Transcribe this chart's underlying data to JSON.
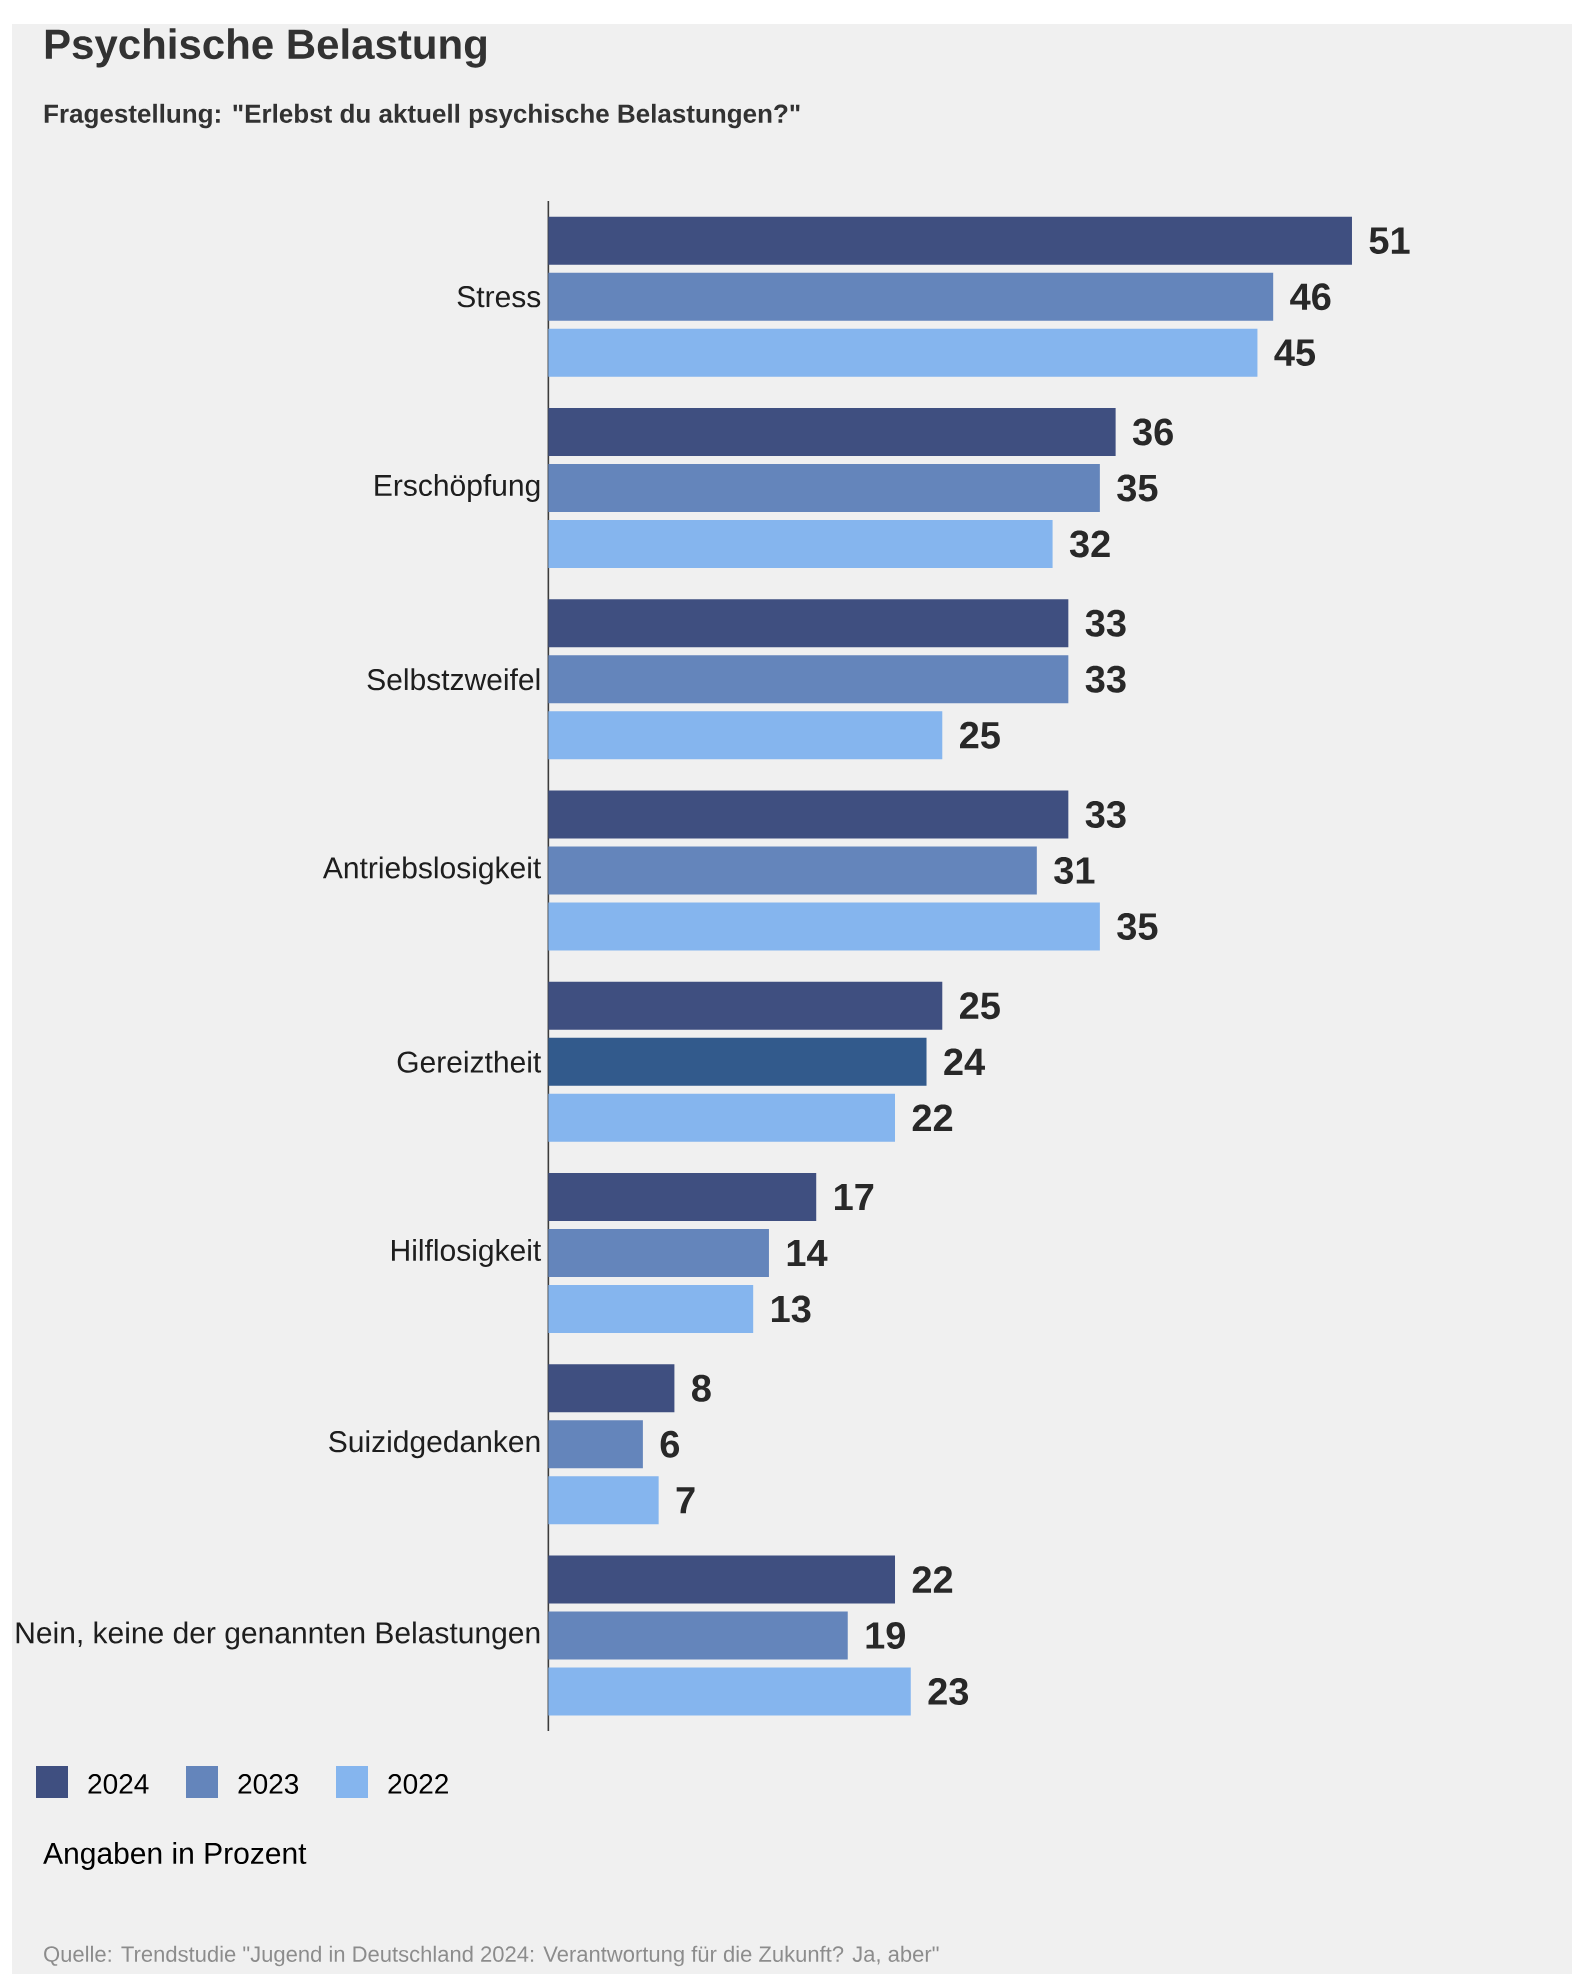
{
  "chart_data": {
    "type": "bar",
    "orientation": "horizontal",
    "title": "Psychische Belastung",
    "subtitle": "Fragestellung: \"Erlebst du aktuell psychische Belastungen?\"",
    "categories": [
      "Stress",
      "Erschöpfung",
      "Selbstzweifel",
      "Antriebslosigkeit",
      "Gereiztheit",
      "Hilflosigkeit",
      "Suizidgedanken",
      "Nein, keine der genannten Belastungen"
    ],
    "series": [
      {
        "name": "2024",
        "color": "#3f4f80",
        "values": [
          51,
          36,
          33,
          33,
          25,
          17,
          8,
          22
        ]
      },
      {
        "name": "2023",
        "color": "#6485bb",
        "colors": [
          "#6485bb",
          "#6485bb",
          "#6485bb",
          "#6485bb",
          "#325a8c",
          "#6485bb",
          "#6485bb",
          "#6485bb"
        ],
        "values": [
          46,
          35,
          33,
          31,
          24,
          14,
          6,
          19
        ]
      },
      {
        "name": "2022",
        "color": "#85b5ee",
        "values": [
          45,
          32,
          25,
          35,
          22,
          13,
          7,
          23
        ]
      }
    ],
    "data_labels": true,
    "legend": "bottom left",
    "annotations": [
      "Angaben in Prozent",
      "Quelle: Trendstudie \"Jugend in Deutschland 2024: Verantwortung für die Zukunft? Ja, aber\""
    ]
  }
}
